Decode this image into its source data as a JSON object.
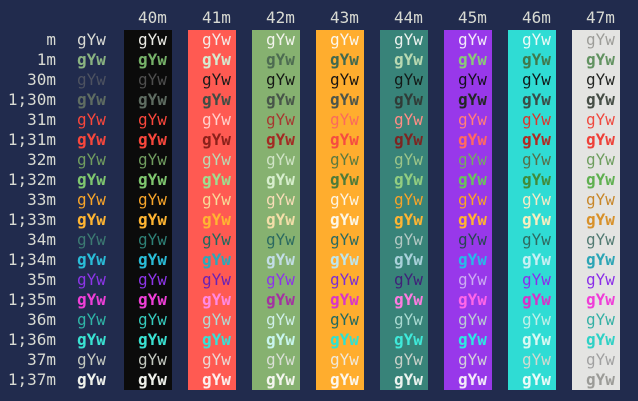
{
  "terminal": {
    "background": "#212b4d",
    "default_text_color": "#d8dad3",
    "cell_text": "gYw",
    "header": {
      "labels": [
        "40m",
        "41m",
        "42m",
        "43m",
        "44m",
        "45m",
        "46m",
        "47m"
      ],
      "color": "#d8dad3"
    },
    "row_label_color": "#d8dad3",
    "column_backgrounds": [
      "transparent",
      "#0b0b0b",
      "#ff5a52",
      "#86b170",
      "#ffad2e",
      "#388379",
      "#9838ea",
      "#2fdcd4",
      "#e4e4e2"
    ],
    "rows": [
      {
        "label": "m",
        "bold": false,
        "colors": [
          "#d9dad4",
          "#ebebe5",
          "#f5eae6",
          "#f2f4ec",
          "#fcf7ec",
          "#ecf2ee",
          "#f2eaf8",
          "#eafaf7",
          "#9d9d99"
        ]
      },
      {
        "label": "1m",
        "bold": true,
        "colors": [
          "#8ab381",
          "#76b269",
          "#d6ead0",
          "#4d6b51",
          "#41684f",
          "#b9d9b2",
          "#8cc979",
          "#40784c",
          "#619260"
        ]
      },
      {
        "label": "30m",
        "bold": false,
        "colors": [
          "#4d5260",
          "#4e4e4e",
          "#1d1b1a",
          "#151815",
          "#191613",
          "#131a18",
          "#15121c",
          "#121c1b",
          "#242624"
        ]
      },
      {
        "label": "1;30m",
        "bold": true,
        "colors": [
          "#5f6d62",
          "#5f6d62",
          "#414c44",
          "#475549",
          "#4c554a",
          "#303b37",
          "#232823",
          "#3b4b45",
          "#454d45"
        ]
      },
      {
        "label": "31m",
        "bold": false,
        "colors": [
          "#f8473c",
          "#f8473c",
          "#ffd0ca",
          "#a63931",
          "#fb6a5c",
          "#ff8e85",
          "#ff8179",
          "#d8392f",
          "#ef4a40"
        ]
      },
      {
        "label": "1;31m",
        "bold": true,
        "colors": [
          "#f8473c",
          "#f8473c",
          "#8c211b",
          "#a32a23",
          "#f54c41",
          "#7c2521",
          "#ff6b61",
          "#b02a22",
          "#ee4038"
        ]
      },
      {
        "label": "32m",
        "bold": false,
        "colors": [
          "#709c5f",
          "#709c5f",
          "#bdd8b1",
          "#cfe3c5",
          "#5d7a3e",
          "#9cc489",
          "#79a763",
          "#566f4b",
          "#6f9e60"
        ]
      },
      {
        "label": "1;32m",
        "bold": true,
        "colors": [
          "#7fc76f",
          "#7fc76f",
          "#9fdd90",
          "#d7eecd",
          "#4e7a39",
          "#93cd81",
          "#6cc25b",
          "#418a3b",
          "#5fb050"
        ]
      },
      {
        "label": "33m",
        "bold": false,
        "colors": [
          "#f6a42a",
          "#f6a42a",
          "#f6d99a",
          "#f7dcb7",
          "#fdf4e0",
          "#f6a42a",
          "#f6a42a",
          "#f4ebc7",
          "#c8872b"
        ]
      },
      {
        "label": "1;33m",
        "bold": true,
        "colors": [
          "#ffb532",
          "#ffb532",
          "#ffb532",
          "#f3dea9",
          "#fdf7e6",
          "#ffb532",
          "#ffb532",
          "#f8eec1",
          "#d8912a"
        ]
      },
      {
        "label": "34m",
        "bold": false,
        "colors": [
          "#3c7a72",
          "#2e8076",
          "#20685f",
          "#2c6a60",
          "#2c6a60",
          "#b2c8c3",
          "#284750",
          "#2f6a62",
          "#537b73"
        ]
      },
      {
        "label": "1;34m",
        "bold": true,
        "colors": [
          "#2abdd8",
          "#2abdd8",
          "#2aa9ba",
          "#c3dde7",
          "#c0e5eb",
          "#a9d1da",
          "#29b9e8",
          "#c9eff3",
          "#2ba5b5"
        ]
      },
      {
        "label": "35m",
        "bold": false,
        "colors": [
          "#8d35e8",
          "#8d35e8",
          "#6b23b2",
          "#8d35e8",
          "#7b2ed2",
          "#402278",
          "#caacf0",
          "#8c2fe8",
          "#8c2fe8"
        ]
      },
      {
        "label": "1;35m",
        "bold": true,
        "colors": [
          "#ef3fd8",
          "#ef3fd8",
          "#ff8ae2",
          "#a232a2",
          "#d735c9",
          "#ff7be1",
          "#ff67e8",
          "#d731c9",
          "#ef3dd8"
        ]
      },
      {
        "label": "36m",
        "bold": false,
        "colors": [
          "#2fb4a6",
          "#36cabc",
          "#b3d9d3",
          "#cfeee8",
          "#23695f",
          "#a9d9d1",
          "#b9ccd4",
          "#c0eee9",
          "#36b1a5"
        ]
      },
      {
        "label": "1;36m",
        "bold": true,
        "colors": [
          "#3ae2d2",
          "#3ae2d2",
          "#37e1d6",
          "#c9f5ef",
          "#2fe1d1",
          "#3fe9da",
          "#2fe9e1",
          "#d9f8f3",
          "#2fd1c5"
        ]
      },
      {
        "label": "37m",
        "bold": false,
        "colors": [
          "#c3c8bf",
          "#c3c8bf",
          "#e9d9d5",
          "#d9dfd6",
          "#f1e9d9",
          "#c9d1c9",
          "#d1d1d9",
          "#d1d9d1",
          "#a1a1a1"
        ]
      },
      {
        "label": "1;37m",
        "bold": true,
        "colors": [
          "#eff1eb",
          "#eff1eb",
          "#fbf0ee",
          "#f4f6f0",
          "#fdf8ee",
          "#edf3ef",
          "#f3ebf9",
          "#ebfbf8",
          "#9b9b97"
        ]
      }
    ]
  }
}
